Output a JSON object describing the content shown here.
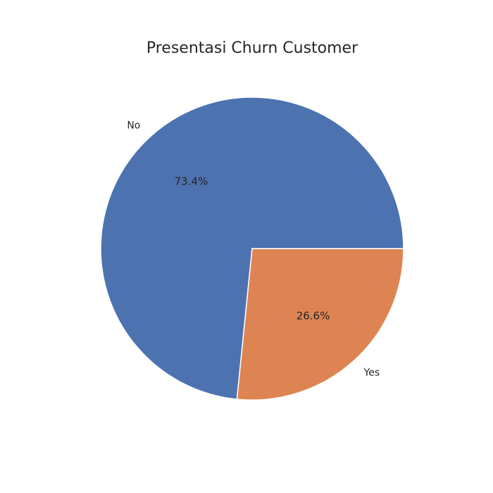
{
  "chart_data": {
    "type": "pie",
    "title": "Presentasi Churn Customer",
    "categories": [
      "No",
      "Yes"
    ],
    "values": [
      73.4,
      26.6
    ],
    "percent_labels": [
      "73.4%",
      "26.6%"
    ],
    "colors": [
      "#4c72b0",
      "#dd8452"
    ],
    "start_angle_deg": 0,
    "direction": "counterclockwise"
  }
}
